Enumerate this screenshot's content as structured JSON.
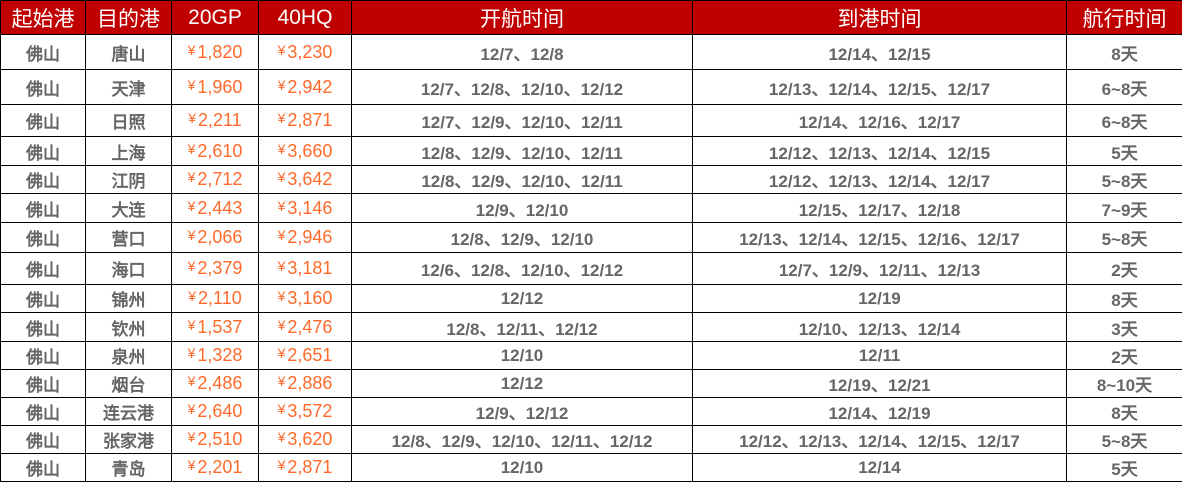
{
  "headers": [
    "起始港",
    "目的港",
    "20GP",
    "40HQ",
    "开航时间",
    "到港时间",
    "航行时间"
  ],
  "currency": "¥",
  "colors": {
    "header_bg": "#c00000",
    "price": "#ff6a2b",
    "text": "#666666"
  },
  "rows": [
    {
      "origin": "佛山",
      "dest": "唐山",
      "gp20": "1,820",
      "hq40": "3,230",
      "depart": "12/7、12/8",
      "arrive": "12/14、12/15",
      "transit": "8天"
    },
    {
      "origin": "佛山",
      "dest": "天津",
      "gp20": "1,960",
      "hq40": "2,942",
      "depart": "12/7、12/8、12/10、12/12",
      "arrive": "12/13、12/14、12/15、12/17",
      "transit": "6~8天"
    },
    {
      "origin": "佛山",
      "dest": "日照",
      "gp20": "2,211",
      "hq40": "2,871",
      "depart": "12/7、12/9、12/10、12/11",
      "arrive": "12/14、12/16、12/17",
      "transit": "6~8天"
    },
    {
      "origin": "佛山",
      "dest": "上海",
      "gp20": "2,610",
      "hq40": "3,660",
      "depart": "12/8、12/9、12/10、12/11",
      "arrive": "12/12、12/13、12/14、12/15",
      "transit": "5天"
    },
    {
      "origin": "佛山",
      "dest": "江阴",
      "gp20": "2,712",
      "hq40": "3,642",
      "depart": "12/8、12/9、12/10、12/11",
      "arrive": "12/12、12/13、12/14、12/17",
      "transit": "5~8天"
    },
    {
      "origin": "佛山",
      "dest": "大连",
      "gp20": "2,443",
      "hq40": "3,146",
      "depart": "12/9、12/10",
      "arrive": "12/15、12/17、12/18",
      "transit": "7~9天"
    },
    {
      "origin": "佛山",
      "dest": "营口",
      "gp20": "2,066",
      "hq40": "2,946",
      "depart": "12/8、12/9、12/10",
      "arrive": "12/13、12/14、12/15、12/16、12/17",
      "transit": "5~8天"
    },
    {
      "origin": "佛山",
      "dest": "海口",
      "gp20": "2,379",
      "hq40": "3,181",
      "depart": "12/6、12/8、12/10、12/12",
      "arrive": "12/7、12/9、12/11、12/13",
      "transit": "2天"
    },
    {
      "origin": "佛山",
      "dest": "锦州",
      "gp20": "2,110",
      "hq40": "3,160",
      "depart": "12/12",
      "arrive": "12/19",
      "transit": "8天"
    },
    {
      "origin": "佛山",
      "dest": "钦州",
      "gp20": "1,537",
      "hq40": "2,476",
      "depart": "12/8、12/11、12/12",
      "arrive": "12/10、12/13、12/14",
      "transit": "3天"
    },
    {
      "origin": "佛山",
      "dest": "泉州",
      "gp20": "1,328",
      "hq40": "2,651",
      "depart": "12/10",
      "arrive": "12/11",
      "transit": "2天"
    },
    {
      "origin": "佛山",
      "dest": "烟台",
      "gp20": "2,486",
      "hq40": "2,886",
      "depart": "12/12",
      "arrive": "12/19、12/21",
      "transit": "8~10天"
    },
    {
      "origin": "佛山",
      "dest": "连云港",
      "gp20": "2,640",
      "hq40": "3,572",
      "depart": "12/9、12/12",
      "arrive": "12/14、12/19",
      "transit": "8天"
    },
    {
      "origin": "佛山",
      "dest": "张家港",
      "gp20": "2,510",
      "hq40": "3,620",
      "depart": "12/8、12/9、12/10、12/11、12/12",
      "arrive": "12/12、12/13、12/14、12/15、12/17",
      "transit": "5~8天"
    },
    {
      "origin": "佛山",
      "dest": "青岛",
      "gp20": "2,201",
      "hq40": "2,871",
      "depart": "12/10",
      "arrive": "12/14",
      "transit": "5天"
    }
  ]
}
